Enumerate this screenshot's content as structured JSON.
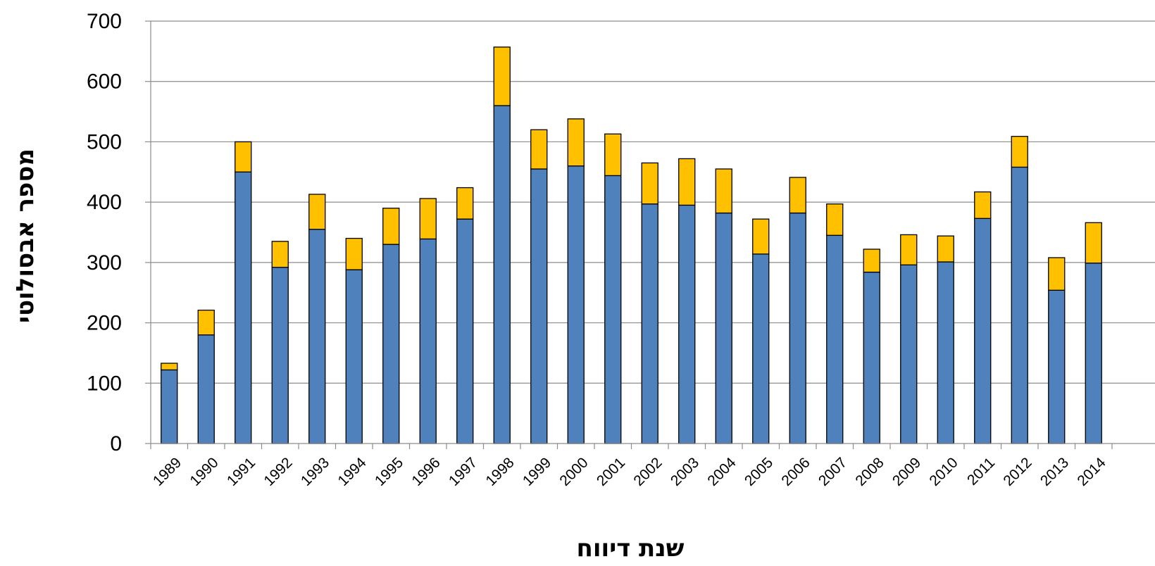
{
  "chart_data": {
    "type": "bar",
    "stacked": true,
    "title": "",
    "xlabel": "שנת דיווח",
    "ylabel": "מספר אבסולוטי",
    "ylim": [
      0,
      700
    ],
    "yticks": [
      "0",
      "100",
      "200",
      "300",
      "400",
      "500",
      "600",
      "700"
    ],
    "grid": true,
    "legend": "none",
    "categories": [
      "1989",
      "1990",
      "1991",
      "1992",
      "1993",
      "1994",
      "1995",
      "1996",
      "1997",
      "1998",
      "1999",
      "2000",
      "2001",
      "2002",
      "2003",
      "2004",
      "2005",
      "2006",
      "2007",
      "2008",
      "2009",
      "2010",
      "2011",
      "2012",
      "2013",
      "2014"
    ],
    "series": [
      {
        "color": "#4f81bd",
        "values": [
          122,
          180,
          450,
          292,
          355,
          288,
          330,
          339,
          372,
          560,
          455,
          460,
          444,
          397,
          395,
          382,
          314,
          382,
          345,
          284,
          296,
          301,
          373,
          458,
          254,
          299
        ]
      },
      {
        "color": "#ffc000",
        "values": [
          11,
          41,
          50,
          43,
          58,
          52,
          60,
          67,
          52,
          97,
          65,
          78,
          69,
          68,
          77,
          73,
          58,
          59,
          52,
          38,
          50,
          43,
          44,
          51,
          54,
          67
        ]
      }
    ]
  }
}
